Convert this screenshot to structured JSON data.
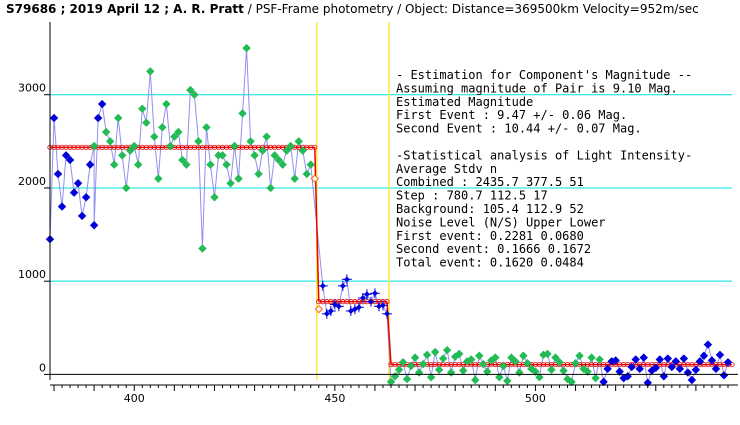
{
  "header": {
    "star_date_observer": "S79686 ; 2019 April 12 ; A. R. Pratt",
    "method": " / PSF-Frame photometry / ",
    "object_info": "Object: Distance=369500km Velocity=952m/sec"
  },
  "panel": {
    "lines": [
      "- Estimation for Component's Magnitude --",
      "Assuming magnitude of Pair is  9.10 Mag.",
      "Estimated Magnitude",
      "  First Event  :  9.47 +/- 0.06  Mag.",
      "  Second Event : 10.44 +/- 0.07  Mag.",
      "",
      "-Statistical analysis of Light Intensity-",
      "             Average   Stdv       n",
      "  Combined  :  2435.7   377.5     51",
      "  Step      :   780.7   112.5     17",
      "  Background:   105.4   112.9     52",
      "Noise Level (N/S)   Upper     Lower",
      "  First event:     0.2281    0.0680",
      "  Second event:    0.1666    0.1672",
      "  Total event:     0.1620    0.0484"
    ]
  },
  "chart_data": {
    "type": "line",
    "title": "",
    "xlabel": "",
    "ylabel": "",
    "xlim": [
      379,
      549
    ],
    "ylim": [
      -60,
      3780
    ],
    "x_ticks": [
      400,
      450,
      500
    ],
    "y_ticks": [
      0,
      1000,
      2000,
      3000
    ],
    "y_gridlines": [
      1000,
      2000,
      3000
    ],
    "event_lines_x": [
      445.5,
      463.5
    ],
    "colors": {
      "gridline": "#00e0e0",
      "event_line": "#ffe840",
      "light_curve": "#9090ee",
      "step_model": "#dd0000",
      "model_red_line": "#ee0000",
      "points_green": "#22bb55",
      "points_blue": "#0000dd",
      "points_orange": "#ff6600"
    },
    "step_model": {
      "levels": [
        2435.7,
        780.7,
        105.4
      ],
      "segments": [
        [
          379,
          445
        ],
        [
          446,
          463
        ],
        [
          464,
          549
        ]
      ],
      "transitions": [
        [
          445,
          2435.7,
          446,
          780.7
        ],
        [
          463,
          780.7,
          464,
          105.4
        ]
      ]
    },
    "series": [
      {
        "marker": "green-diamond",
        "x": [
          390,
          393,
          394,
          395,
          396,
          397,
          398,
          399,
          400,
          401,
          402,
          403,
          404,
          405,
          406,
          407,
          408,
          409,
          410,
          411,
          412,
          413,
          414,
          415,
          416,
          417,
          418,
          419,
          420,
          421,
          422,
          423,
          424,
          425,
          426,
          427,
          428,
          429,
          430,
          431,
          432,
          433,
          434,
          435,
          436,
          437,
          438,
          439,
          440,
          441,
          442,
          443,
          444,
          464,
          465,
          466,
          467,
          468,
          469,
          470,
          471,
          472,
          473,
          474,
          475,
          476,
          477,
          478,
          479,
          480,
          481,
          482,
          483,
          484,
          485,
          486,
          487,
          488,
          489,
          490,
          491,
          492,
          493,
          494,
          495,
          496,
          497,
          498,
          499,
          500,
          501,
          502,
          503,
          504,
          505,
          506,
          507,
          508,
          509,
          510,
          511,
          512,
          513,
          514,
          515,
          516
        ],
        "y": [
          2450,
          2600,
          2500,
          2250,
          2750,
          2350,
          2000,
          2400,
          2450,
          2250,
          2850,
          2700,
          3250,
          2550,
          2100,
          2650,
          2900,
          2450,
          2550,
          2600,
          2300,
          2250,
          3050,
          3000,
          2500,
          1350,
          2650,
          2250,
          1900,
          2350,
          2350,
          2250,
          2050,
          2450,
          2100,
          2800,
          3500,
          2500,
          2350,
          2150,
          2400,
          2550,
          2000,
          2350,
          2300,
          2250,
          2400,
          2450,
          2100,
          2500,
          2400,
          2150,
          2250,
          -80,
          -20,
          50,
          130,
          -50,
          90,
          180,
          20,
          110,
          210,
          -30,
          240,
          50,
          170,
          260,
          20,
          190,
          220,
          40,
          140,
          160,
          -60,
          200,
          110,
          30,
          150,
          180,
          -30,
          90,
          -70,
          180,
          140,
          20,
          200,
          120,
          60,
          30,
          -30,
          210,
          220,
          50,
          180,
          130,
          40,
          -50,
          -80,
          120,
          200,
          60,
          30,
          180,
          -40,
          160
        ]
      },
      {
        "marker": "blue-diamond",
        "x": [
          379,
          380,
          381,
          382,
          383,
          384,
          385,
          386,
          387,
          388,
          389,
          390,
          391,
          392,
          517,
          518,
          519,
          520,
          521,
          522,
          523,
          524,
          525,
          526,
          527,
          528,
          529,
          530,
          531,
          532,
          533,
          534,
          535,
          536,
          537,
          538,
          539,
          540,
          541,
          542,
          543,
          544,
          545,
          546,
          547,
          548
        ],
        "y": [
          1450,
          2750,
          2150,
          1800,
          2350,
          2300,
          1950,
          2050,
          1700,
          1900,
          2250,
          1600,
          2750,
          2900,
          -80,
          60,
          140,
          150,
          30,
          -40,
          -20,
          80,
          160,
          60,
          180,
          -90,
          40,
          70,
          160,
          -20,
          170,
          80,
          140,
          60,
          170,
          20,
          -60,
          50,
          140,
          200,
          320,
          150,
          60,
          210,
          -10,
          130
        ]
      },
      {
        "marker": "blue-cross",
        "x": [
          447,
          448,
          449,
          450,
          451,
          452,
          453,
          454,
          455,
          456,
          457,
          458,
          459,
          460,
          461,
          462,
          463
        ],
        "y": [
          950,
          650,
          680,
          750,
          730,
          950,
          1020,
          680,
          700,
          720,
          820,
          860,
          780,
          870,
          730,
          740,
          650
        ]
      },
      {
        "marker": "orange-diamond",
        "x": [
          446,
          445
        ],
        "y": [
          700,
          2100
        ]
      }
    ]
  }
}
